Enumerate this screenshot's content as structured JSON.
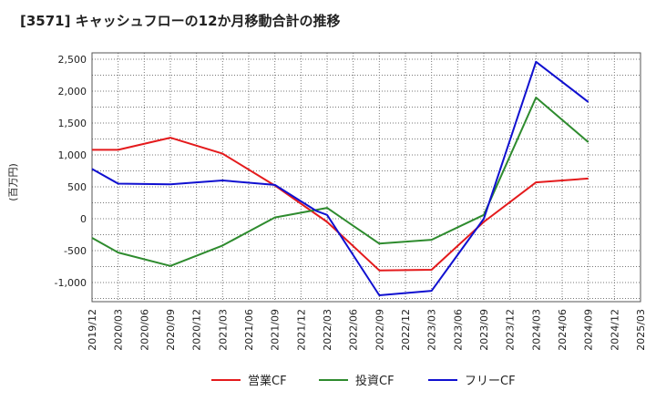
{
  "chart_data": {
    "type": "line",
    "title": "[3571]  キャッシュフローの12か月移動合計の推移",
    "ylabel": "(百万円)",
    "xlabel": "",
    "ylim": [
      -1300,
      2600
    ],
    "yticks": [
      2500,
      2000,
      1500,
      1000,
      500,
      0,
      -500,
      -1000
    ],
    "ytick_labels": [
      "2,500",
      "2,000",
      "1,500",
      "1,000",
      "500",
      "0",
      "-500",
      "-1,000"
    ],
    "x_labels": [
      "2019/12",
      "2020/03",
      "2020/06",
      "2020/09",
      "2020/12",
      "2021/03",
      "2021/06",
      "2021/09",
      "2021/12",
      "2022/03",
      "2022/06",
      "2022/09",
      "2022/12",
      "2023/03",
      "2023/06",
      "2023/09",
      "2023/12",
      "2024/03",
      "2024/06",
      "2024/09",
      "2024/12",
      "2025/03"
    ],
    "grid": true,
    "legend_position": "bottom",
    "series": [
      {
        "name": "営業CF",
        "color": "#e41a1c",
        "points": [
          [
            0,
            1080
          ],
          [
            1,
            1080
          ],
          [
            3,
            1270
          ],
          [
            5,
            1020
          ],
          [
            7,
            520
          ],
          [
            9,
            -50
          ],
          [
            11,
            -810
          ],
          [
            13,
            -800
          ],
          [
            15,
            -50
          ],
          [
            17,
            570
          ],
          [
            19,
            630
          ]
        ]
      },
      {
        "name": "投資CF",
        "color": "#2e8b2e",
        "points": [
          [
            0,
            -300
          ],
          [
            1,
            -530
          ],
          [
            3,
            -740
          ],
          [
            5,
            -420
          ],
          [
            7,
            20
          ],
          [
            9,
            170
          ],
          [
            11,
            -390
          ],
          [
            13,
            -330
          ],
          [
            15,
            60
          ],
          [
            17,
            1900
          ],
          [
            19,
            1200
          ]
        ]
      },
      {
        "name": "フリーCF",
        "color": "#1010d0",
        "points": [
          [
            0,
            780
          ],
          [
            1,
            550
          ],
          [
            3,
            540
          ],
          [
            5,
            600
          ],
          [
            7,
            530
          ],
          [
            8.6,
            120
          ],
          [
            9,
            60
          ],
          [
            11,
            -1200
          ],
          [
            13,
            -1130
          ],
          [
            15,
            0
          ],
          [
            17,
            2460
          ],
          [
            19,
            1830
          ]
        ]
      }
    ]
  }
}
